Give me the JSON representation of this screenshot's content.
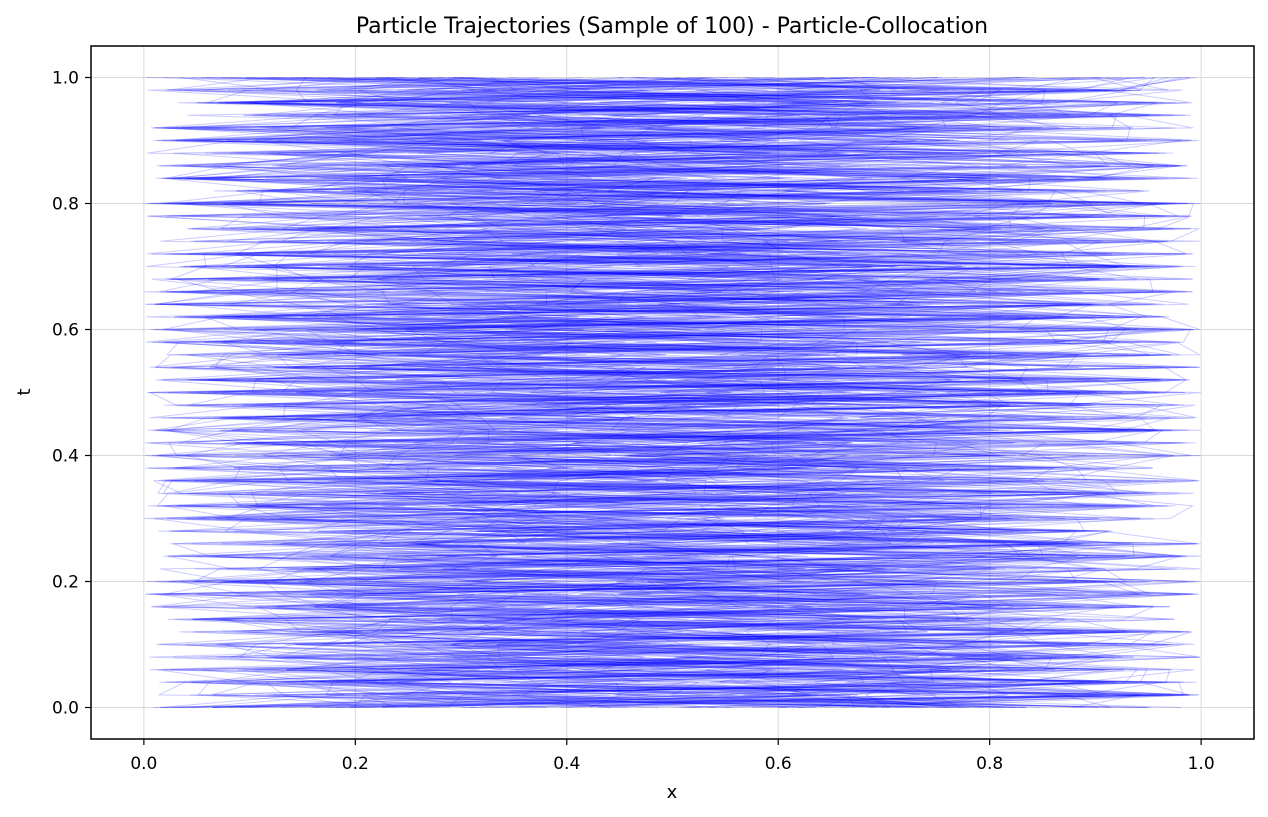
{
  "chart_data": {
    "type": "line",
    "title": "Particle Trajectories (Sample of 100) - Particle-Collocation",
    "xlabel": "x",
    "ylabel": "t",
    "xlim": [
      -0.05,
      1.05
    ],
    "ylim": [
      -0.05,
      1.05
    ],
    "xticks": [
      0.0,
      0.2,
      0.4,
      0.6,
      0.8,
      1.0
    ],
    "xtick_labels": [
      "0.0",
      "0.2",
      "0.4",
      "0.6",
      "0.8",
      "1.0"
    ],
    "yticks": [
      0.0,
      0.2,
      0.4,
      0.6,
      0.8,
      1.0
    ],
    "ytick_labels": [
      "0.0",
      "0.2",
      "0.4",
      "0.6",
      "0.8",
      "1.0"
    ],
    "grid": true,
    "series_count": 100,
    "series_color": "#0000ff",
    "series_opacity": 0.2,
    "time_steps": 51,
    "t_range": [
      0.0,
      1.0
    ],
    "x_range": [
      0.0,
      1.0
    ],
    "description_of_series": "each particle's x position jumps randomly within [0, 1] at every time step t = 0, 0.02, ..., 1.0"
  }
}
